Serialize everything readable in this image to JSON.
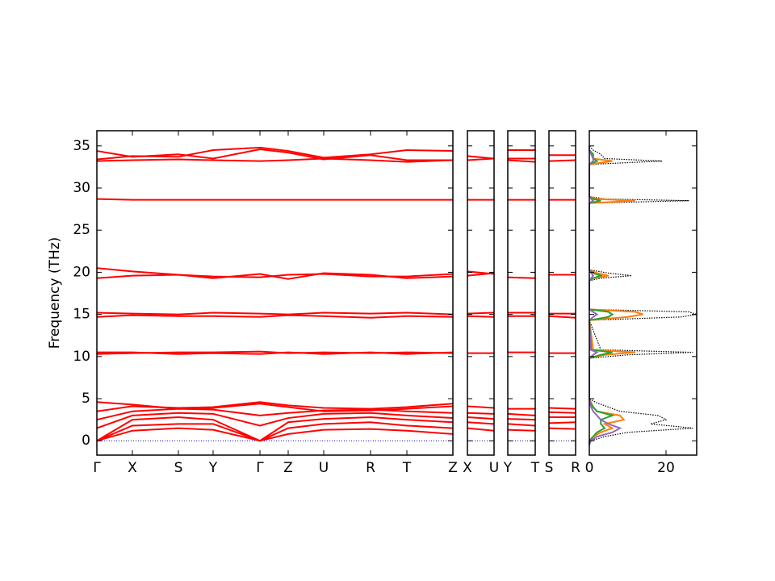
{
  "chart_data": [
    {
      "type": "band",
      "ylabel": "Frequency (THz)",
      "color": "#ff0000",
      "categories": [
        "Γ",
        "X",
        "S",
        "Y",
        "Γ",
        "Z",
        "U",
        "R",
        "T",
        "Z"
      ],
      "x": [
        0,
        0.44,
        1.01,
        1.44,
        2.02,
        2.37,
        2.81,
        3.39,
        3.84,
        4.41
      ],
      "xlim": [
        0,
        4.41
      ],
      "ylim": [
        -1.7,
        36.8
      ],
      "yticks": [
        0,
        5,
        10,
        15,
        20,
        25,
        30,
        35
      ],
      "zero_line": {
        "value": 0,
        "color": "#0000cc"
      },
      "series": [
        {
          "values": [
            0,
            1.2,
            1.5,
            1.3,
            0,
            0.8,
            1.3,
            1.4,
            1.2,
            0.8
          ]
        },
        {
          "values": [
            0,
            1.8,
            2,
            2,
            0,
            1.5,
            2,
            2.2,
            1.8,
            1.5
          ]
        },
        {
          "values": [
            0,
            2.5,
            2.8,
            2.5,
            0,
            2.2,
            2.6,
            2.8,
            2.5,
            2.2
          ]
        },
        {
          "values": [
            1.5,
            3,
            3.3,
            3.2,
            1.8,
            2.7,
            3.2,
            3.3,
            3,
            2.7
          ]
        },
        {
          "values": [
            2.5,
            3.5,
            3.8,
            3.7,
            3,
            3.3,
            3.6,
            3.7,
            3.5,
            3.3
          ]
        },
        {
          "values": [
            3.5,
            4.1,
            3.9,
            4,
            4.6,
            4.2,
            3.9,
            3.8,
            4,
            4.4
          ]
        },
        {
          "values": [
            4.6,
            4.3,
            3.8,
            3.9,
            4.4,
            4.0,
            3.5,
            3.6,
            3.8,
            4.1
          ]
        },
        {
          "values": [
            10.3,
            10.4,
            10.5,
            10.5,
            10.6,
            10.4,
            10.5,
            10.4,
            10.5,
            10.4
          ]
        },
        {
          "values": [
            10.5,
            10.5,
            10.3,
            10.4,
            10.3,
            10.5,
            10.3,
            10.5,
            10.3,
            10.5
          ]
        },
        {
          "values": [
            14.7,
            14.9,
            14.8,
            14.8,
            14.7,
            14.9,
            14.8,
            14.6,
            14.8,
            14.7
          ]
        },
        {
          "values": [
            15.2,
            15.1,
            15.0,
            15.2,
            15.1,
            15.0,
            15.2,
            15.1,
            15.2,
            15.0
          ]
        },
        {
          "values": [
            20.5,
            20.1,
            19.7,
            19.3,
            19.8,
            19.2,
            19.9,
            19.7,
            19.3,
            19.5
          ]
        },
        {
          "values": [
            19.3,
            19.6,
            19.7,
            19.5,
            19.4,
            19.7,
            19.8,
            19.5,
            19.5,
            19.8
          ]
        },
        {
          "values": [
            28.7,
            28.6,
            28.6,
            28.6,
            28.6,
            28.6,
            28.6,
            28.6,
            28.6,
            28.6
          ]
        },
        {
          "values": [
            33.2,
            33.3,
            33.4,
            33.3,
            33.2,
            33.3,
            33.5,
            33.3,
            33.1,
            33.3
          ]
        },
        {
          "values": [
            33.4,
            33.8,
            33.7,
            34.5,
            34.8,
            34.4,
            33.6,
            34.0,
            34.5,
            34.4
          ]
        },
        {
          "values": [
            34.4,
            33.7,
            34.0,
            33.5,
            34.6,
            34.2,
            33.4,
            33.9,
            33.3,
            33.3
          ]
        }
      ]
    },
    {
      "type": "band",
      "color": "#ff0000",
      "categories": [
        "X",
        "U"
      ],
      "x": [
        0,
        0.33
      ],
      "xlim": [
        0,
        0.33
      ],
      "ylim": [
        -1.7,
        36.8
      ],
      "zero_line": {
        "value": 0,
        "color": "#0000cc"
      },
      "series": [
        {
          "values": [
            1.5,
            1.2
          ]
        },
        {
          "values": [
            2.2,
            2.0
          ]
        },
        {
          "values": [
            2.8,
            2.6
          ]
        },
        {
          "values": [
            3.3,
            3.2
          ]
        },
        {
          "values": [
            4.1,
            3.9
          ]
        },
        {
          "values": [
            10.4,
            10.4
          ]
        },
        {
          "values": [
            14.8,
            14.7
          ]
        },
        {
          "values": [
            15.1,
            15.2
          ]
        },
        {
          "values": [
            20.1,
            19.8
          ]
        },
        {
          "values": [
            19.6,
            19.9
          ]
        },
        {
          "values": [
            28.6,
            28.6
          ]
        },
        {
          "values": [
            33.3,
            33.5
          ]
        },
        {
          "values": [
            33.8,
            33.5
          ]
        }
      ]
    },
    {
      "type": "band",
      "color": "#ff0000",
      "categories": [
        "Y",
        "T"
      ],
      "x": [
        0,
        0.34
      ],
      "xlim": [
        0,
        0.34
      ],
      "ylim": [
        -1.7,
        36.8
      ],
      "zero_line": {
        "value": 0,
        "color": "#0000cc"
      },
      "series": [
        {
          "values": [
            1.3,
            1.2
          ]
        },
        {
          "values": [
            2.0,
            1.8
          ]
        },
        {
          "values": [
            2.6,
            2.5
          ]
        },
        {
          "values": [
            3.2,
            3.0
          ]
        },
        {
          "values": [
            3.8,
            3.8
          ]
        },
        {
          "values": [
            10.5,
            10.5
          ]
        },
        {
          "values": [
            14.8,
            14.8
          ]
        },
        {
          "values": [
            15.2,
            15.2
          ]
        },
        {
          "values": [
            19.4,
            19.3
          ]
        },
        {
          "values": [
            28.6,
            28.6
          ]
        },
        {
          "values": [
            33.3,
            33.1
          ]
        },
        {
          "values": [
            33.5,
            33.5
          ]
        },
        {
          "values": [
            34.5,
            34.5
          ]
        }
      ]
    },
    {
      "type": "band",
      "color": "#ff0000",
      "categories": [
        "S",
        "R"
      ],
      "x": [
        0,
        0.33
      ],
      "xlim": [
        0,
        0.33
      ],
      "ylim": [
        -1.7,
        36.8
      ],
      "zero_line": {
        "value": 0,
        "color": "#0000cc"
      },
      "series": [
        {
          "values": [
            1.5,
            1.4
          ]
        },
        {
          "values": [
            2.1,
            2.2
          ]
        },
        {
          "values": [
            2.8,
            2.8
          ]
        },
        {
          "values": [
            3.4,
            3.3
          ]
        },
        {
          "values": [
            3.9,
            3.8
          ]
        },
        {
          "values": [
            10.4,
            10.4
          ]
        },
        {
          "values": [
            14.8,
            14.6
          ]
        },
        {
          "values": [
            15.1,
            15.1
          ]
        },
        {
          "values": [
            19.7,
            19.7
          ]
        },
        {
          "values": [
            28.6,
            28.6
          ]
        },
        {
          "values": [
            33.2,
            33.3
          ]
        },
        {
          "values": [
            33.9,
            33.9
          ]
        }
      ]
    },
    {
      "type": "dos",
      "xlim": [
        0,
        28
      ],
      "xticks": [
        0,
        20
      ],
      "ylim": [
        -1.7,
        36.8
      ],
      "y": [
        -0.5,
        0,
        0.5,
        1,
        1.5,
        2,
        2.5,
        3,
        3.5,
        4,
        4.5,
        5,
        9.8,
        10.2,
        10.5,
        10.8,
        14.3,
        14.7,
        15,
        15.3,
        15.6,
        19,
        19.3,
        19.6,
        19.9,
        20.3,
        28.2,
        28.5,
        28.7,
        29,
        32.8,
        33.2,
        33.5,
        34,
        34.5,
        35
      ],
      "series": [
        {
          "color": "#000000",
          "dotted": true,
          "values": [
            0,
            0.5,
            4,
            10,
            27,
            16,
            20,
            18,
            8,
            5,
            2,
            0,
            0,
            10,
            27,
            3,
            0,
            24,
            28,
            26,
            0,
            0,
            3,
            11,
            5,
            0,
            0,
            26,
            4,
            0,
            0,
            19,
            4,
            3,
            1,
            0
          ]
        },
        {
          "color": "#ff7f0e",
          "values": [
            0,
            0,
            1,
            3,
            6,
            4,
            9,
            8,
            2,
            1,
            0.5,
            0,
            0,
            4,
            12,
            1,
            0,
            10,
            14,
            12,
            0,
            0,
            1,
            5,
            2,
            0,
            0,
            12,
            2,
            0,
            0,
            6,
            1,
            1,
            0,
            0
          ]
        },
        {
          "color": "#2ca02c",
          "values": [
            0,
            0,
            1,
            2,
            4,
            3,
            3,
            6,
            2,
            1,
            0.3,
            0,
            0,
            3,
            6,
            0.5,
            0,
            5,
            6,
            5,
            0,
            0,
            1,
            3,
            1,
            0,
            0,
            3,
            1,
            0,
            0,
            2,
            1,
            1,
            0,
            0
          ]
        },
        {
          "color": "#9467bd",
          "values": [
            0,
            0.3,
            2,
            6,
            8,
            5,
            3,
            2,
            1,
            0.5,
            0.2,
            0,
            0,
            1,
            2,
            0.3,
            0,
            1,
            2,
            1,
            0,
            0,
            0.5,
            1,
            0.5,
            0,
            0,
            1,
            0.5,
            0,
            0,
            1,
            1,
            0.5,
            0,
            0
          ]
        }
      ]
    }
  ]
}
